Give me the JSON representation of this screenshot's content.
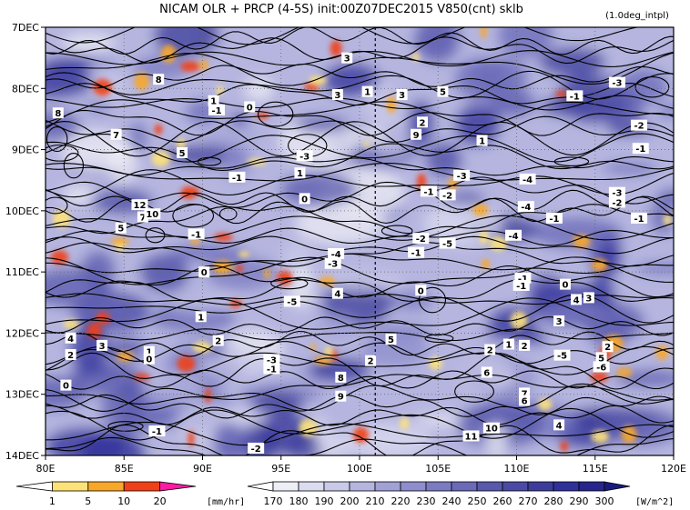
{
  "chart_data": {
    "type": "heatmap",
    "title": "NICAM  OLR + PRCP (4-5S) init:00Z07DEC2015 V850(cnt) sklb",
    "note": "(1.0deg_intpl)",
    "x": {
      "range": [
        80,
        120
      ],
      "ticks": [
        80,
        85,
        90,
        95,
        100,
        105,
        110,
        115,
        120
      ],
      "tick_labels": [
        "80E",
        "85E",
        "90E",
        "95E",
        "100E",
        "105E",
        "110E",
        "115E",
        "120E"
      ]
    },
    "y": {
      "ticks": [
        "7DEC",
        "8DEC",
        "9DEC",
        "10DEC",
        "11DEC",
        "12DEC",
        "13DEC",
        "14DEC"
      ],
      "direction": "time increases downward"
    },
    "reference_line": {
      "x": 101
    },
    "prcp_colorbar": {
      "levels": [
        "1",
        "5",
        "10",
        "20"
      ],
      "unit": "[mm/hr]",
      "colors": [
        "#ffffff",
        "#fde27a",
        "#f8a728",
        "#ef4019",
        "#ff1aa3"
      ]
    },
    "olr_colorbar": {
      "levels": [
        "170",
        "180",
        "190",
        "200",
        "210",
        "220",
        "230",
        "240",
        "250",
        "260",
        "270",
        "280",
        "290",
        "300"
      ],
      "unit": "[W/m^2]",
      "colors": [
        "#ffffff",
        "#eeeef6",
        "#dcdcf0",
        "#c9c9e8",
        "#b5b5e0",
        "#a1a1d6",
        "#8e8ecc",
        "#7b7bc2",
        "#6a6ab8",
        "#5858ad",
        "#4a4aa4",
        "#3c3c9a",
        "#30309a",
        "#25258c",
        "#1a1a7e"
      ]
    },
    "contour_labels": [
      {
        "text": "8",
        "lon": 87.2,
        "day": 0.85
      },
      {
        "text": "3",
        "lon": 99.2,
        "day": 0.5
      },
      {
        "text": "3",
        "lon": 98.6,
        "day": 1.1
      },
      {
        "text": "1",
        "lon": 100.5,
        "day": 1.05
      },
      {
        "text": "3",
        "lon": 102.7,
        "day": 1.1
      },
      {
        "text": "5",
        "lon": 105.3,
        "day": 1.05
      },
      {
        "text": "-3",
        "lon": 116.4,
        "day": 0.9
      },
      {
        "text": "-1",
        "lon": 113.7,
        "day": 1.12
      },
      {
        "text": "-2",
        "lon": 117.8,
        "day": 1.6
      },
      {
        "text": "8",
        "lon": 80.8,
        "day": 1.4
      },
      {
        "text": "7",
        "lon": 84.5,
        "day": 1.75
      },
      {
        "text": "5",
        "lon": 88.7,
        "day": 2.05
      },
      {
        "text": "1",
        "lon": 90.7,
        "day": 1.2
      },
      {
        "text": "-1",
        "lon": 90.9,
        "day": 1.35
      },
      {
        "text": "0",
        "lon": 93.0,
        "day": 1.3
      },
      {
        "text": "2",
        "lon": 104.0,
        "day": 1.55
      },
      {
        "text": "9",
        "lon": 103.6,
        "day": 1.75
      },
      {
        "text": "1",
        "lon": 107.8,
        "day": 1.85
      },
      {
        "text": "-1",
        "lon": 117.9,
        "day": 1.98
      },
      {
        "text": "-3",
        "lon": 96.5,
        "day": 2.1
      },
      {
        "text": "1",
        "lon": 96.2,
        "day": 2.38
      },
      {
        "text": "-1",
        "lon": 92.2,
        "day": 2.45
      },
      {
        "text": "0",
        "lon": 96.5,
        "day": 2.8
      },
      {
        "text": "-3",
        "lon": 106.5,
        "day": 2.42
      },
      {
        "text": "-4",
        "lon": 110.7,
        "day": 2.48
      },
      {
        "text": "-1",
        "lon": 104.4,
        "day": 2.68
      },
      {
        "text": "-2",
        "lon": 105.6,
        "day": 2.74
      },
      {
        "text": "-3",
        "lon": 116.4,
        "day": 2.7
      },
      {
        "text": "-2",
        "lon": 116.4,
        "day": 2.86
      },
      {
        "text": "12",
        "lon": 86.0,
        "day": 2.9
      },
      {
        "text": "7",
        "lon": 86.2,
        "day": 3.1
      },
      {
        "text": "10",
        "lon": 86.8,
        "day": 3.05
      },
      {
        "text": "5",
        "lon": 84.8,
        "day": 3.28
      },
      {
        "text": "-1",
        "lon": 112.4,
        "day": 3.12
      },
      {
        "text": "-4",
        "lon": 110.6,
        "day": 2.93
      },
      {
        "text": "-1",
        "lon": 117.8,
        "day": 3.12
      },
      {
        "text": "-1",
        "lon": 89.6,
        "day": 3.38
      },
      {
        "text": "-2",
        "lon": 103.9,
        "day": 3.45
      },
      {
        "text": "-4",
        "lon": 109.8,
        "day": 3.4
      },
      {
        "text": "-5",
        "lon": 105.6,
        "day": 3.53
      },
      {
        "text": "-1",
        "lon": 103.6,
        "day": 3.68
      },
      {
        "text": "-4",
        "lon": 98.5,
        "day": 3.7
      },
      {
        "text": "-3",
        "lon": 98.3,
        "day": 3.86
      },
      {
        "text": "0",
        "lon": 90.1,
        "day": 4.0
      },
      {
        "text": "-1",
        "lon": 110.4,
        "day": 4.1
      },
      {
        "text": "-1",
        "lon": 110.3,
        "day": 4.22
      },
      {
        "text": "0",
        "lon": 113.1,
        "day": 4.2
      },
      {
        "text": "0",
        "lon": 103.9,
        "day": 4.3
      },
      {
        "text": "-5",
        "lon": 95.7,
        "day": 4.48
      },
      {
        "text": "4",
        "lon": 98.6,
        "day": 4.35
      },
      {
        "text": "4",
        "lon": 113.8,
        "day": 4.45
      },
      {
        "text": "3",
        "lon": 114.6,
        "day": 4.42
      },
      {
        "text": "1",
        "lon": 89.9,
        "day": 4.73
      },
      {
        "text": "3",
        "lon": 112.7,
        "day": 4.8
      },
      {
        "text": "4",
        "lon": 81.6,
        "day": 5.08
      },
      {
        "text": "3",
        "lon": 83.6,
        "day": 5.2
      },
      {
        "text": "2",
        "lon": 81.6,
        "day": 5.35
      },
      {
        "text": "1",
        "lon": 86.6,
        "day": 5.3
      },
      {
        "text": "0",
        "lon": 86.6,
        "day": 5.42
      },
      {
        "text": "2",
        "lon": 91.0,
        "day": 5.12
      },
      {
        "text": "5",
        "lon": 102.0,
        "day": 5.1
      },
      {
        "text": "-3",
        "lon": 94.4,
        "day": 5.43
      },
      {
        "text": "-1",
        "lon": 94.4,
        "day": 5.58
      },
      {
        "text": "2",
        "lon": 108.3,
        "day": 5.27
      },
      {
        "text": "1",
        "lon": 109.5,
        "day": 5.18
      },
      {
        "text": "2",
        "lon": 110.5,
        "day": 5.2
      },
      {
        "text": "2",
        "lon": 115.8,
        "day": 5.22
      },
      {
        "text": "-5",
        "lon": 112.9,
        "day": 5.36
      },
      {
        "text": "5",
        "lon": 115.4,
        "day": 5.4
      },
      {
        "text": "-6",
        "lon": 115.4,
        "day": 5.55
      },
      {
        "text": "8",
        "lon": 98.8,
        "day": 5.72
      },
      {
        "text": "2",
        "lon": 100.7,
        "day": 5.45
      },
      {
        "text": "6",
        "lon": 108.1,
        "day": 5.64
      },
      {
        "text": "0",
        "lon": 81.3,
        "day": 5.85
      },
      {
        "text": "9",
        "lon": 98.8,
        "day": 6.03
      },
      {
        "text": "7",
        "lon": 110.5,
        "day": 5.98
      },
      {
        "text": "6",
        "lon": 110.5,
        "day": 6.1
      },
      {
        "text": "-1",
        "lon": 87.1,
        "day": 6.6
      },
      {
        "text": "10",
        "lon": 108.4,
        "day": 6.55
      },
      {
        "text": "11",
        "lon": 107.1,
        "day": 6.68
      },
      {
        "text": "4",
        "lon": 112.7,
        "day": 6.5
      },
      {
        "text": "-2",
        "lon": 93.4,
        "day": 6.88
      }
    ]
  }
}
